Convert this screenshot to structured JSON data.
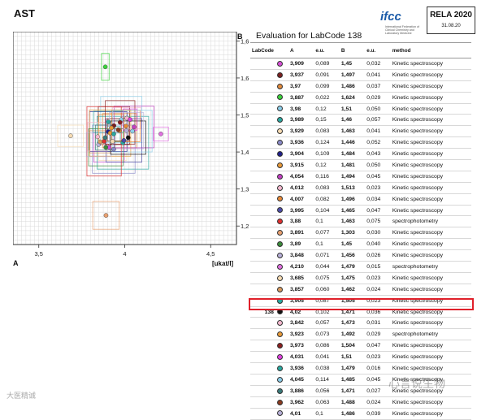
{
  "header": {
    "title": "AST",
    "logo_brand": "ifcc",
    "logo_sub": "International Federation of Clinical Chemistry and Laboratory Medicine",
    "ring_name": "RELA 2020",
    "ring_date": "31.08.20",
    "eval_title": "Evaluation for LabCode 138"
  },
  "chart_data": {
    "type": "scatter",
    "title": "AST",
    "xlabel": "[ukat/l]",
    "corner_x": "A",
    "corner_y": "B",
    "xlim": [
      3.35,
      4.65
    ],
    "ylim": [
      1.24,
      1.7
    ],
    "x_ticks": [
      "3,5",
      "4",
      "4,5"
    ],
    "y_ticks": [
      "1,68",
      "1,6",
      "1,52",
      "1,44",
      "1,36",
      "1,28"
    ],
    "grid": true,
    "points": [
      {
        "A": 3.909,
        "B": 1.45,
        "eA": 0.089,
        "eB": 0.032,
        "color": "#d64fd6"
      },
      {
        "A": 3.937,
        "B": 1.497,
        "eA": 0.091,
        "eB": 0.041,
        "color": "#7a1f1f"
      },
      {
        "A": 3.97,
        "B": 1.486,
        "eA": 0.099,
        "eB": 0.037,
        "color": "#e08a3c"
      },
      {
        "A": 3.887,
        "B": 1.624,
        "eA": 0.022,
        "eB": 0.029,
        "color": "#3bd23b"
      },
      {
        "A": 3.98,
        "B": 1.51,
        "eA": 0.12,
        "eB": 0.05,
        "color": "#8ccde8"
      },
      {
        "A": 3.989,
        "B": 1.46,
        "eA": 0.15,
        "eB": 0.057,
        "color": "#2aa8a0"
      },
      {
        "A": 3.929,
        "B": 1.463,
        "eA": 0.083,
        "eB": 0.041,
        "color": "#f7dcb4"
      },
      {
        "A": 3.936,
        "B": 1.446,
        "eA": 0.124,
        "eB": 0.052,
        "color": "#8a8ac8"
      },
      {
        "A": 3.904,
        "B": 1.484,
        "eA": 0.109,
        "eB": 0.043,
        "color": "#1f1f8a"
      },
      {
        "A": 3.915,
        "B": 1.481,
        "eA": 0.12,
        "eB": 0.05,
        "color": "#e89a3a"
      },
      {
        "A": 4.054,
        "B": 1.494,
        "eA": 0.116,
        "eB": 0.045,
        "color": "#c23fc2"
      },
      {
        "A": 4.012,
        "B": 1.513,
        "eA": 0.083,
        "eB": 0.023,
        "color": "#f4b9cf"
      },
      {
        "A": 4.007,
        "B": 1.496,
        "eA": 0.082,
        "eB": 0.034,
        "color": "#e88a3a"
      },
      {
        "A": 3.995,
        "B": 1.465,
        "eA": 0.104,
        "eB": 0.047,
        "color": "#4c4ca8"
      },
      {
        "A": 3.88,
        "B": 1.463,
        "eA": 0.1,
        "eB": 0.075,
        "color": "#e13030"
      },
      {
        "A": 3.891,
        "B": 1.303,
        "eA": 0.077,
        "eB": 0.03,
        "color": "#e8a070"
      },
      {
        "A": 3.89,
        "B": 1.45,
        "eA": 0.1,
        "eB": 0.04,
        "color": "#3a8a3a"
      },
      {
        "A": 3.848,
        "B": 1.456,
        "eA": 0.071,
        "eB": 0.026,
        "color": "#b8b0d8"
      },
      {
        "A": 4.21,
        "B": 1.479,
        "eA": 0.044,
        "eB": 0.015,
        "color": "#e070e0"
      },
      {
        "A": 3.685,
        "B": 1.475,
        "eA": 0.075,
        "eB": 0.023,
        "color": "#f7dcb4"
      },
      {
        "A": 3.857,
        "B": 1.462,
        "eA": 0.06,
        "eB": 0.024,
        "color": "#d89a60"
      },
      {
        "A": 3.905,
        "B": 1.505,
        "eA": 0.087,
        "eB": 0.023,
        "color": "#2aa8a0"
      },
      {
        "A": 4.02,
        "B": 1.471,
        "eA": 0.102,
        "eB": 0.036,
        "color": "#111111"
      },
      {
        "A": 3.842,
        "B": 1.473,
        "eA": 0.057,
        "eB": 0.031,
        "color": "#f4b9cf"
      },
      {
        "A": 3.923,
        "B": 1.492,
        "eA": 0.073,
        "eB": 0.029,
        "color": "#e89a3a"
      },
      {
        "A": 3.973,
        "B": 1.504,
        "eA": 0.086,
        "eB": 0.047,
        "color": "#8a1f1f"
      },
      {
        "A": 4.031,
        "B": 1.51,
        "eA": 0.041,
        "eB": 0.023,
        "color": "#e040e0"
      },
      {
        "A": 3.936,
        "B": 1.479,
        "eA": 0.038,
        "eB": 0.016,
        "color": "#2aa8a0"
      },
      {
        "A": 4.045,
        "B": 1.485,
        "eA": 0.114,
        "eB": 0.045,
        "color": "#8ccde8"
      },
      {
        "A": 3.886,
        "B": 1.471,
        "eA": 0.056,
        "eB": 0.027,
        "color": "#3a7a7a"
      },
      {
        "A": 3.962,
        "B": 1.488,
        "eA": 0.063,
        "eB": 0.024,
        "color": "#8a3a1f"
      },
      {
        "A": 4.01,
        "B": 1.486,
        "eA": 0.1,
        "eB": 0.039,
        "color": "#b8b0d8"
      }
    ]
  },
  "table": {
    "headers": [
      "LabCode",
      "A",
      "e.u.",
      "B",
      "e.u.",
      "method"
    ],
    "rows": [
      {
        "lab": "",
        "color": "#d64fd6",
        "A": "3,909",
        "eA": "0,089",
        "B": "1,45",
        "eB": "0,032",
        "method": "Kinetic spectroscopy"
      },
      {
        "lab": "",
        "color": "#7a1f1f",
        "A": "3,937",
        "eA": "0,091",
        "B": "1,497",
        "eB": "0,041",
        "method": "Kinetic spectroscopy"
      },
      {
        "lab": "",
        "color": "#e08a3c",
        "A": "3,97",
        "eA": "0,099",
        "B": "1,486",
        "eB": "0,037",
        "method": "Kinetic spectroscopy"
      },
      {
        "lab": "",
        "color": "#3bd23b",
        "A": "3,887",
        "eA": "0,022",
        "B": "1,624",
        "eB": "0,029",
        "method": "Kinetic spectroscopy"
      },
      {
        "lab": "",
        "color": "#8ccde8",
        "A": "3,98",
        "eA": "0,12",
        "B": "1,51",
        "eB": "0,050",
        "method": "Kinetic spectroscopy"
      },
      {
        "lab": "",
        "color": "#2aa8a0",
        "A": "3,989",
        "eA": "0,15",
        "B": "1,46",
        "eB": "0,057",
        "method": "Kinetic spectroscopy"
      },
      {
        "lab": "",
        "color": "#f7dcb4",
        "A": "3,929",
        "eA": "0,083",
        "B": "1,463",
        "eB": "0,041",
        "method": "Kinetic spectroscopy"
      },
      {
        "lab": "",
        "color": "#8a8ac8",
        "A": "3,936",
        "eA": "0,124",
        "B": "1,446",
        "eB": "0,052",
        "method": "Kinetic spectroscopy"
      },
      {
        "lab": "",
        "color": "#1f1f8a",
        "A": "3,904",
        "eA": "0,109",
        "B": "1,484",
        "eB": "0,043",
        "method": "Kinetic spectroscopy"
      },
      {
        "lab": "",
        "color": "#e89a3a",
        "A": "3,915",
        "eA": "0,12",
        "B": "1,481",
        "eB": "0,050",
        "method": "Kinetic spectroscopy"
      },
      {
        "lab": "",
        "color": "#c23fc2",
        "A": "4,054",
        "eA": "0,116",
        "B": "1,494",
        "eB": "0,045",
        "method": "Kinetic spectroscopy"
      },
      {
        "lab": "",
        "color": "#f4b9cf",
        "A": "4,012",
        "eA": "0,083",
        "B": "1,513",
        "eB": "0,023",
        "method": "Kinetic spectroscopy"
      },
      {
        "lab": "",
        "color": "#e88a3a",
        "A": "4,007",
        "eA": "0,082",
        "B": "1,496",
        "eB": "0,034",
        "method": "Kinetic spectroscopy"
      },
      {
        "lab": "",
        "color": "#4c4ca8",
        "A": "3,995",
        "eA": "0,104",
        "B": "1,465",
        "eB": "0,047",
        "method": "Kinetic spectroscopy"
      },
      {
        "lab": "",
        "color": "#e13030",
        "A": "3,88",
        "eA": "0,1",
        "B": "1,463",
        "eB": "0,075",
        "method": "spectrophotometry"
      },
      {
        "lab": "",
        "color": "#e8a070",
        "A": "3,891",
        "eA": "0,077",
        "B": "1,303",
        "eB": "0,030",
        "method": "Kinetic spectroscopy"
      },
      {
        "lab": "",
        "color": "#3a8a3a",
        "A": "3,89",
        "eA": "0,1",
        "B": "1,45",
        "eB": "0,040",
        "method": "Kinetic spectroscopy"
      },
      {
        "lab": "",
        "color": "#b8b0d8",
        "A": "3,848",
        "eA": "0,071",
        "B": "1,456",
        "eB": "0,026",
        "method": "Kinetic spectroscopy"
      },
      {
        "lab": "",
        "color": "#e070e0",
        "A": "4,210",
        "eA": "0,044",
        "B": "1,479",
        "eB": "0,015",
        "method": "spectrophotometry"
      },
      {
        "lab": "",
        "color": "#f7dcb4",
        "A": "3,685",
        "eA": "0,075",
        "B": "1,475",
        "eB": "0,023",
        "method": "Kinetic spectroscopy"
      },
      {
        "lab": "",
        "color": "#d89a60",
        "A": "3,857",
        "eA": "0,060",
        "B": "1,462",
        "eB": "0,024",
        "method": "Kinetic spectroscopy"
      },
      {
        "lab": "",
        "color": "#2aa8a0",
        "A": "3,905",
        "eA": "0,087",
        "B": "1,505",
        "eB": "0,023",
        "method": "Kinetic spectroscopy"
      },
      {
        "lab": "138",
        "color": "#111111",
        "A": "4,02",
        "eA": "0,102",
        "B": "1,471",
        "eB": "0,036",
        "method": "Kinetic spectroscopy"
      },
      {
        "lab": "",
        "color": "#f4b9cf",
        "A": "3,842",
        "eA": "0,057",
        "B": "1,473",
        "eB": "0,031",
        "method": "Kinetic spectroscopy"
      },
      {
        "lab": "",
        "color": "#e89a3a",
        "A": "3,923",
        "eA": "0,073",
        "B": "1,492",
        "eB": "0,029",
        "method": "spectrophotometry"
      },
      {
        "lab": "",
        "color": "#8a1f1f",
        "A": "3,973",
        "eA": "0,086",
        "B": "1,504",
        "eB": "0,047",
        "method": "Kinetic spectroscopy"
      },
      {
        "lab": "",
        "color": "#e040e0",
        "A": "4,031",
        "eA": "0,041",
        "B": "1,51",
        "eB": "0,023",
        "method": "Kinetic spectroscopy"
      },
      {
        "lab": "",
        "color": "#2aa8a0",
        "A": "3,936",
        "eA": "0,038",
        "B": "1,479",
        "eB": "0,016",
        "method": "Kinetic spectroscopy"
      },
      {
        "lab": "",
        "color": "#8ccde8",
        "A": "4,045",
        "eA": "0,114",
        "B": "1,485",
        "eB": "0,045",
        "method": "Kinetic spectroscopy"
      },
      {
        "lab": "",
        "color": "#3a7a7a",
        "A": "3,886",
        "eA": "0,056",
        "B": "1,471",
        "eB": "0,027",
        "method": "Kinetic spectroscopy"
      },
      {
        "lab": "",
        "color": "#8a3a1f",
        "A": "3,962",
        "eA": "0,063",
        "B": "1,488",
        "eB": "0,024",
        "method": "Kinetic spectroscopy"
      },
      {
        "lab": "",
        "color": "#b8b0d8",
        "A": "4,01",
        "eA": "0,1",
        "B": "1,486",
        "eB": "0,039",
        "method": "Kinetic spectroscopy"
      }
    ]
  },
  "watermarks": {
    "left": "大医精诚",
    "right": "心言说生物"
  },
  "colors": {
    "highlight": "#e0202a",
    "grid": "#d9d9d9"
  }
}
